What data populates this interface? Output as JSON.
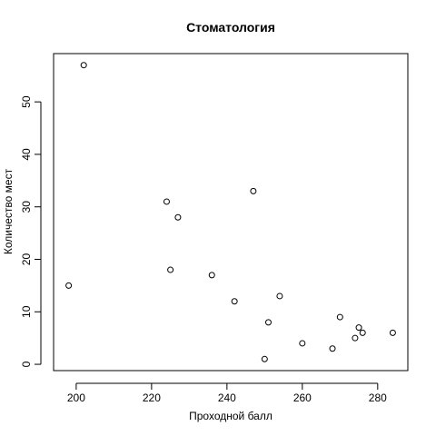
{
  "chart_data": {
    "type": "scatter",
    "title": "Стоматология",
    "xlabel": "Проходной балл",
    "ylabel": "Количество мест",
    "xlim": [
      194,
      288
    ],
    "ylim": [
      -1.2,
      59.2
    ],
    "x_ticks": [
      200,
      220,
      240,
      260,
      280
    ],
    "y_ticks": [
      0,
      10,
      20,
      30,
      40,
      50
    ],
    "grid": false,
    "points": [
      {
        "x": 198,
        "y": 15
      },
      {
        "x": 202,
        "y": 57
      },
      {
        "x": 224,
        "y": 31
      },
      {
        "x": 225,
        "y": 18
      },
      {
        "x": 227,
        "y": 28
      },
      {
        "x": 236,
        "y": 17
      },
      {
        "x": 242,
        "y": 12
      },
      {
        "x": 247,
        "y": 33
      },
      {
        "x": 250,
        "y": 1
      },
      {
        "x": 251,
        "y": 8
      },
      {
        "x": 254,
        "y": 13
      },
      {
        "x": 260,
        "y": 4
      },
      {
        "x": 268,
        "y": 3
      },
      {
        "x": 270,
        "y": 9
      },
      {
        "x": 274,
        "y": 5
      },
      {
        "x": 275,
        "y": 7
      },
      {
        "x": 276,
        "y": 6
      },
      {
        "x": 284,
        "y": 6
      }
    ]
  }
}
